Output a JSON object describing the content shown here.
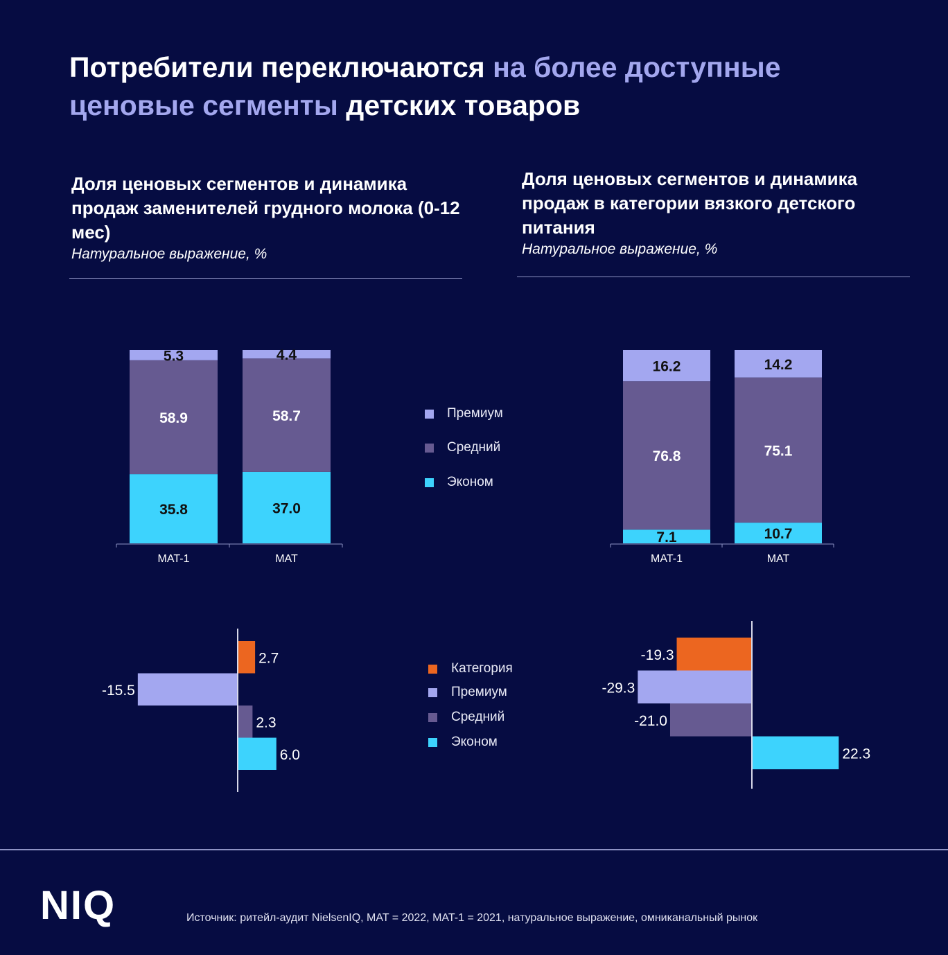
{
  "header": {
    "title_part1": "Потребители переключаются ",
    "title_accent1": "на более доступные ценовые сегменты",
    "title_part2": " детских товаров"
  },
  "colors": {
    "background": "#060c42",
    "accent_text": "#a3a7ee",
    "premium": "#a3a7f0",
    "middle": "#665a91",
    "economy": "#3dd3fd",
    "category": "#ec6620"
  },
  "panels": [
    {
      "title": "Доля ценовых сегментов и динамика продаж заменителей грудного молока (0-12 мес)",
      "subtitle": "Натуральное выражение, %"
    },
    {
      "title": "Доля ценовых сегментов и динамика продаж в категории вязкого детского питания",
      "subtitle": "Натуральное выражение, %"
    }
  ],
  "legend_share": [
    "Премиум",
    "Средний",
    "Эконом"
  ],
  "legend_dynamics": [
    "Категория",
    "Премиум",
    "Средний",
    "Эконом"
  ],
  "chart_data": [
    {
      "type": "bar",
      "stacked": true,
      "orientation": "vertical",
      "title": "Доля ценовых сегментов — заменители грудного молока (0-12 мес)",
      "ylabel": "Натуральное выражение, %",
      "categories": [
        "MAT-1",
        "MAT"
      ],
      "series": [
        {
          "name": "Эконом",
          "values": [
            35.8,
            37.0
          ]
        },
        {
          "name": "Средний",
          "values": [
            58.9,
            58.7
          ]
        },
        {
          "name": "Премиум",
          "values": [
            5.3,
            4.4
          ]
        }
      ],
      "ylim": [
        0,
        100
      ],
      "grid": false,
      "legend": "right"
    },
    {
      "type": "bar",
      "stacked": true,
      "orientation": "vertical",
      "title": "Доля ценовых сегментов — вязкое детское питание",
      "ylabel": "Натуральное выражение, %",
      "categories": [
        "MAT-1",
        "MAT"
      ],
      "series": [
        {
          "name": "Эконом",
          "values": [
            7.1,
            10.7
          ]
        },
        {
          "name": "Средний",
          "values": [
            76.8,
            75.1
          ]
        },
        {
          "name": "Премиум",
          "values": [
            16.2,
            14.2
          ]
        }
      ],
      "ylim": [
        0,
        100
      ],
      "grid": false,
      "legend": "left"
    },
    {
      "type": "bar",
      "orientation": "horizontal",
      "title": "Динамика продаж — заменители грудного молока (0-12 мес), %",
      "categories": [
        "Категория",
        "Премиум",
        "Средний",
        "Эконом"
      ],
      "values": [
        2.7,
        -15.5,
        2.3,
        6.0
      ],
      "xlim": [
        -15.5,
        6.0
      ],
      "grid": false,
      "legend": "right"
    },
    {
      "type": "bar",
      "orientation": "horizontal",
      "title": "Динамика продаж — вязкое детское питание, %",
      "categories": [
        "Категория",
        "Премиум",
        "Средний",
        "Эконом"
      ],
      "values": [
        -19.3,
        -29.3,
        -21.0,
        22.3
      ],
      "xlim": [
        -29.3,
        22.3
      ],
      "grid": false,
      "legend": "left"
    }
  ],
  "footer": {
    "logo": "NIQ",
    "source": "Источник: ритейл-аудит NielsenIQ, MAT = 2022, MAT-1 = 2021, натуральное выражение, омниканальный рынок"
  }
}
